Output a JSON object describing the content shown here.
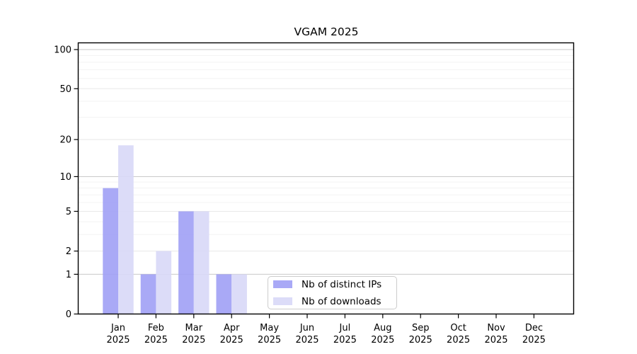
{
  "chart_data": {
    "type": "bar",
    "title": "VGAM 2025",
    "year_label": "2025",
    "categories": [
      "Jan",
      "Feb",
      "Mar",
      "Apr",
      "May",
      "Jun",
      "Jul",
      "Aug",
      "Sep",
      "Oct",
      "Nov",
      "Dec"
    ],
    "series": [
      {
        "name": "Nb of distinct IPs",
        "color": "#a0a0f5",
        "values": [
          8,
          1,
          5,
          1,
          0,
          0,
          0,
          0,
          0,
          0,
          0,
          0
        ]
      },
      {
        "name": "Nb of downloads",
        "color": "#d8d8f7",
        "values": [
          18,
          2,
          5,
          1,
          0,
          0,
          0,
          0,
          0,
          0,
          0,
          0
        ]
      }
    ],
    "yscale": "log1p",
    "yticks": [
      0,
      1,
      2,
      5,
      10,
      20,
      50,
      100
    ],
    "minor_gridlines": [
      3,
      4,
      6,
      7,
      8,
      9,
      30,
      40,
      60,
      70,
      80,
      90
    ],
    "ylim": [
      0,
      113
    ],
    "xlabel": "",
    "ylabel": "",
    "grid": "horizontal",
    "legend_position": "lower-center-inside"
  },
  "colors": {
    "background": "#ffffff",
    "axis": "#000000",
    "gridline_power10": "#c9c9c9",
    "gridline_major": "#e8e8e8",
    "gridline_minor": "#f3f3f3",
    "legend_border": "#cccccc"
  }
}
